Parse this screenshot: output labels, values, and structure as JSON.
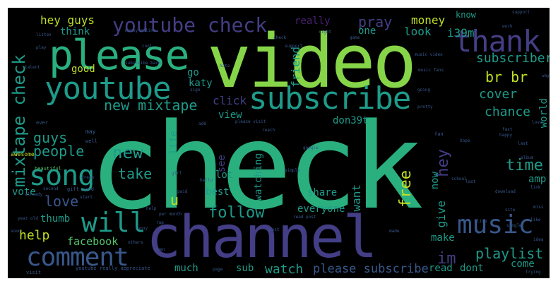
{
  "background": "#000000",
  "palette": {
    "yellow": "#c2df23",
    "lime": "#86d549",
    "green": "#52c569",
    "teal": "#2ab07f",
    "sea": "#1e9b8a",
    "cyan": "#25858e",
    "blue": "#2d708e",
    "indigo": "#38588c",
    "purple": "#433e85",
    "violet": "#482173",
    "dark": "#440154"
  },
  "words": [
    {
      "text": "check",
      "color": "#2ab07f"
    },
    {
      "text": "video",
      "color": "#86d549"
    },
    {
      "text": "channel",
      "color": "#433e85"
    },
    {
      "text": "please",
      "color": "#2ab07f"
    },
    {
      "text": "subscribe",
      "color": "#1e9b8a"
    },
    {
      "text": "youtube",
      "color": "#1e9b8a"
    },
    {
      "text": "thank",
      "color": "#433e85"
    },
    {
      "text": "youtube check",
      "color": "#433e85"
    },
    {
      "text": "mixtape check",
      "color": "#1e9b8a"
    },
    {
      "text": "song",
      "color": "#1e9b8a"
    },
    {
      "text": "will",
      "color": "#1e9b8a"
    },
    {
      "text": "comment",
      "color": "#38588c"
    },
    {
      "text": "music",
      "color": "#38588c"
    },
    {
      "text": "new mixtape",
      "color": "#1e9b8a"
    },
    {
      "text": "subscriber",
      "color": "#1e9b8a"
    },
    {
      "text": "br br",
      "color": "#c2df23"
    },
    {
      "text": "cover",
      "color": "#1e9b8a"
    },
    {
      "text": "chance",
      "color": "#1e9b8a"
    },
    {
      "text": "new",
      "color": "#1e9b8a"
    },
    {
      "text": "guys",
      "color": "#1e9b8a"
    },
    {
      "text": "people",
      "color": "#1e9b8a"
    },
    {
      "text": "take",
      "color": "#1e9b8a"
    },
    {
      "text": "love",
      "color": "#38588c"
    },
    {
      "text": "help",
      "color": "#c2df23"
    },
    {
      "text": "facebook",
      "color": "#52c569"
    },
    {
      "text": "follow",
      "color": "#1e9b8a"
    },
    {
      "text": "watch",
      "color": "#1e9b8a"
    },
    {
      "text": "please subscribe",
      "color": "#38588c"
    },
    {
      "text": "playlist",
      "color": "#1e9b8a"
    },
    {
      "text": "im",
      "color": "#433e85"
    },
    {
      "text": "free",
      "color": "#c2df23"
    },
    {
      "text": "hey",
      "color": "#433e85"
    },
    {
      "text": "time",
      "color": "#1e9b8a"
    },
    {
      "text": "money",
      "color": "#c2df23"
    },
    {
      "text": "pray",
      "color": "#433e85"
    },
    {
      "text": "hey guys",
      "color": "#c2df23"
    },
    {
      "text": "think",
      "color": "#1e9b8a"
    },
    {
      "text": "good",
      "color": "#c2df23"
    },
    {
      "text": "really",
      "color": "#482173"
    },
    {
      "text": "one",
      "color": "#1e9b8a"
    },
    {
      "text": "look",
      "color": "#1e9b8a"
    },
    {
      "text": "i39m",
      "color": "#1e9b8a"
    },
    {
      "text": "know",
      "color": "#1e9b8a"
    },
    {
      "text": "katy",
      "color": "#1e9b8a"
    },
    {
      "text": "go",
      "color": "#1e9b8a"
    },
    {
      "text": "friend",
      "color": "#1e9b8a"
    },
    {
      "text": "click",
      "color": "#433e85"
    },
    {
      "text": "view",
      "color": "#1e9b8a"
    },
    {
      "text": "don39t",
      "color": "#1e9b8a"
    },
    {
      "text": "world",
      "color": "#1e9b8a"
    },
    {
      "text": "life",
      "color": "#1e9b8a"
    },
    {
      "text": "see",
      "color": "#433e85"
    },
    {
      "text": "lot",
      "color": "#1e9b8a"
    },
    {
      "text": "watching",
      "color": "#1e9b8a"
    },
    {
      "text": "want",
      "color": "#1e9b8a"
    },
    {
      "text": "now",
      "color": "#1e9b8a"
    },
    {
      "text": "share",
      "color": "#1e9b8a"
    },
    {
      "text": "amp",
      "color": "#1e9b8a"
    },
    {
      "text": "best",
      "color": "#1e9b8a"
    },
    {
      "text": "vote",
      "color": "#1e9b8a"
    },
    {
      "text": "u",
      "color": "#c2df23"
    },
    {
      "text": "everyone",
      "color": "#1e9b8a"
    },
    {
      "text": "give",
      "color": "#1e9b8a"
    },
    {
      "text": "thumb",
      "color": "#1e9b8a"
    },
    {
      "text": "make",
      "color": "#1e9b8a"
    },
    {
      "text": "come",
      "color": "#1e9b8a"
    },
    {
      "text": "much",
      "color": "#1e9b8a"
    },
    {
      "text": "sub",
      "color": "#1e9b8a"
    },
    {
      "text": "read",
      "color": "#1e9b8a"
    },
    {
      "text": "dont",
      "color": "#1e9b8a"
    },
    {
      "text": "beautiful",
      "color": "#52c569"
    },
    {
      "text": "awesome",
      "color": "#c2df23"
    },
    {
      "text": "may",
      "color": "#38588c"
    },
    {
      "text": "well",
      "color": "#38588c"
    },
    {
      "text": "ever",
      "color": "#38588c"
    },
    {
      "text": "second",
      "color": "#38588c"
    },
    {
      "text": "gift card",
      "color": "#38588c"
    },
    {
      "text": "really appreciate",
      "color": "#38588c"
    },
    {
      "text": "youtube",
      "color": "#38588c"
    },
    {
      "text": "visit",
      "color": "#38588c"
    },
    {
      "text": "year old",
      "color": "#38588c"
    },
    {
      "text": "page",
      "color": "#38588c"
    },
    {
      "text": "simple",
      "color": "#38588c"
    },
    {
      "text": "google",
      "color": "#38588c"
    },
    {
      "text": "reach",
      "color": "#38588c"
    },
    {
      "text": "fan",
      "color": "#38588c"
    },
    {
      "text": "trying",
      "color": "#38588c"
    },
    {
      "text": "happy",
      "color": "#38588c"
    },
    {
      "text": "download",
      "color": "#38588c"
    },
    {
      "text": "please visit",
      "color": "#38588c"
    },
    {
      "text": "subscribe back",
      "color": "#38588c"
    },
    {
      "text": "money online",
      "color": "#38588c"
    },
    {
      "text": "music fans",
      "color": "#38588c"
    },
    {
      "text": "single",
      "color": "#38588c"
    },
    {
      "text": "sign",
      "color": "#38588c"
    },
    {
      "text": "add",
      "color": "#38588c"
    },
    {
      "text": "right",
      "color": "#38588c"
    },
    {
      "text": "game",
      "color": "#38588c"
    },
    {
      "text": "talent",
      "color": "#38588c"
    },
    {
      "text": "girl",
      "color": "#38588c"
    },
    {
      "text": "start",
      "color": "#38588c"
    },
    {
      "text": "going",
      "color": "#38588c"
    },
    {
      "text": "already",
      "color": "#38588c"
    },
    {
      "text": "dream",
      "color": "#38588c"
    },
    {
      "text": "hello",
      "color": "#38588c"
    },
    {
      "text": "support",
      "color": "#38588c"
    },
    {
      "text": "paid",
      "color": "#38588c"
    },
    {
      "text": "made",
      "color": "#38588c"
    },
    {
      "text": "even",
      "color": "#38588c"
    },
    {
      "text": "listen",
      "color": "#38588c"
    },
    {
      "text": "play",
      "color": "#38588c"
    },
    {
      "text": "work",
      "color": "#38588c"
    },
    {
      "text": "support",
      "color": "#38588c"
    },
    {
      "text": "way",
      "color": "#38588c"
    },
    {
      "text": "love",
      "color": "#38588c"
    },
    {
      "text": "link",
      "color": "#38588c"
    },
    {
      "text": "miss",
      "color": "#38588c"
    },
    {
      "text": "site",
      "color": "#38588c"
    },
    {
      "text": "cool",
      "color": "#38588c"
    },
    {
      "text": "help",
      "color": "#38588c"
    },
    {
      "text": "last",
      "color": "#38588c"
    },
    {
      "text": "hope",
      "color": "#38588c"
    },
    {
      "text": "rap",
      "color": "#38588c"
    },
    {
      "text": "per month",
      "color": "#38588c"
    },
    {
      "text": "last",
      "color": "#38588c"
    },
    {
      "text": "like",
      "color": "#38588c"
    },
    {
      "text": "soon",
      "color": "#38588c"
    },
    {
      "text": "funny",
      "color": "#38588c"
    },
    {
      "text": "music video",
      "color": "#38588c"
    },
    {
      "text": "read post",
      "color": "#38588c"
    },
    {
      "text": "hate",
      "color": "#38588c"
    },
    {
      "text": "check",
      "color": "#38588c"
    },
    {
      "text": "others",
      "color": "#38588c"
    },
    {
      "text": "album",
      "color": "#38588c"
    },
    {
      "text": "school",
      "color": "#38588c"
    },
    {
      "text": "live",
      "color": "#38588c"
    },
    {
      "text": "fast",
      "color": "#38588c"
    },
    {
      "text": "idea",
      "color": "#38588c"
    },
    {
      "text": "pretty",
      "color": "#38588c"
    },
    {
      "text": "post",
      "color": "#38588c"
    }
  ]
}
